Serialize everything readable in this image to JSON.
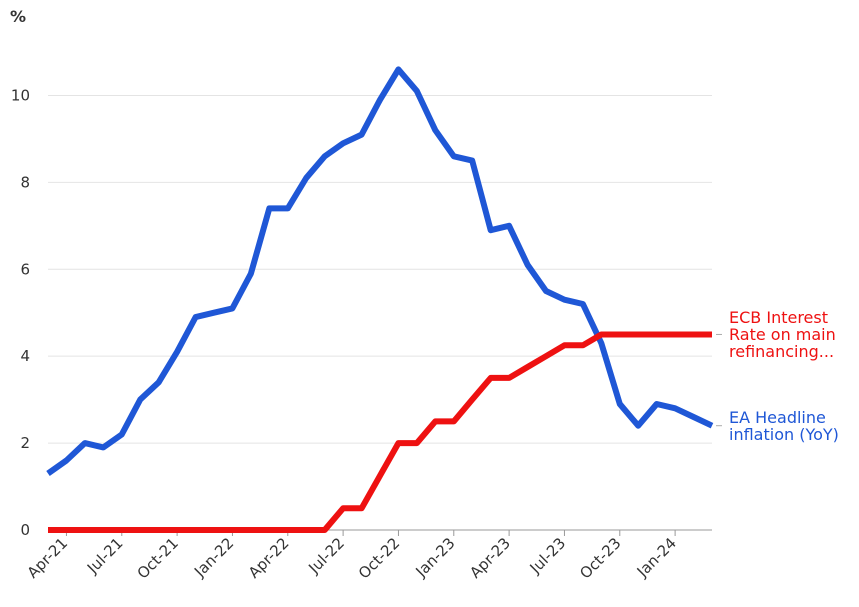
{
  "chart_data": {
    "type": "line",
    "ylabel": "%",
    "categories": [
      null,
      "Apr-21",
      null,
      null,
      "Jul-21",
      null,
      null,
      "Oct-21",
      null,
      null,
      "Jan-22",
      null,
      null,
      "Apr-22",
      null,
      null,
      "Jul-22",
      null,
      null,
      "Oct-22",
      null,
      null,
      "Jan-23",
      null,
      null,
      "Apr-23",
      null,
      null,
      "Jul-23",
      null,
      null,
      "Oct-23",
      null,
      null,
      "Jan-24",
      null,
      null
    ],
    "ylim": [
      0,
      11
    ],
    "yticks": [
      0,
      2,
      4,
      6,
      8,
      10
    ],
    "grid": true,
    "series": [
      {
        "name": "EA Headline inflation (YoY)",
        "color": "#1f57d6",
        "values": [
          1.3,
          1.6,
          2.0,
          1.9,
          2.2,
          3.0,
          3.4,
          4.1,
          4.9,
          5.0,
          5.1,
          5.9,
          7.4,
          7.4,
          8.1,
          8.6,
          8.9,
          9.1,
          9.9,
          10.6,
          10.1,
          9.2,
          8.6,
          8.5,
          6.9,
          7.0,
          6.1,
          5.5,
          5.3,
          5.2,
          4.3,
          2.9,
          2.4,
          2.9,
          2.8,
          2.6,
          2.4
        ]
      },
      {
        "name": "ECB Interest Rate on main refinancing...",
        "color": "#ee1111",
        "values": [
          0,
          0,
          0,
          0,
          0,
          0,
          0,
          0,
          0,
          0,
          0,
          0,
          0,
          0,
          0,
          0,
          0.5,
          0.5,
          1.25,
          2.0,
          2.0,
          2.5,
          2.5,
          3.0,
          3.5,
          3.5,
          3.75,
          4.0,
          4.25,
          4.25,
          4.5,
          4.5,
          4.5,
          4.5,
          4.5,
          4.5,
          4.5
        ]
      }
    ]
  }
}
